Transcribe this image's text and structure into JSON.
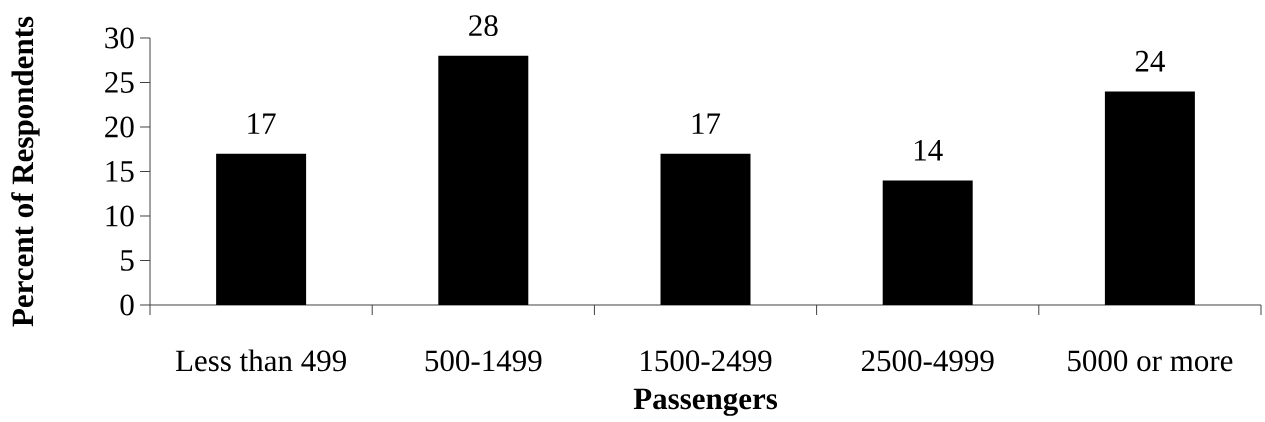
{
  "chart_data": {
    "type": "bar",
    "xlabel": "Passengers",
    "ylabel": "Percent of Respondents",
    "categories": [
      "Less than 499",
      "500-1499",
      "1500-2499",
      "2500-4999",
      "5000 or more"
    ],
    "values": [
      17,
      28,
      17,
      14,
      24
    ],
    "color": "#000000",
    "ylim": [
      0,
      30
    ],
    "yticks": [
      0,
      5,
      10,
      15,
      20,
      25,
      30
    ],
    "data_labels": true
  }
}
